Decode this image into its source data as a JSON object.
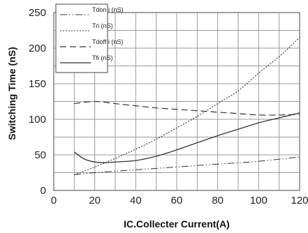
{
  "chart_data": {
    "type": "line",
    "title": "",
    "xlabel": "IC.Collecter Current(A)",
    "ylabel": "Switching Time (nS)",
    "xlim": [
      0,
      120
    ],
    "ylim": [
      0,
      250
    ],
    "xticks": [
      0,
      20,
      40,
      60,
      80,
      100,
      120
    ],
    "yticks": [
      0,
      50,
      100,
      150,
      200,
      250
    ],
    "grid": true,
    "legend_position": "top-left",
    "series": [
      {
        "name": "Tdon i (nS)",
        "dash": "dash-dot-dot",
        "x": [
          10,
          20,
          40,
          60,
          80,
          100,
          120
        ],
        "y": [
          22,
          25,
          29,
          33,
          37,
          41,
          47
        ]
      },
      {
        "name": "Tri (nS)",
        "dash": "dotted",
        "x": [
          10,
          20,
          30,
          40,
          50,
          60,
          70,
          80,
          90,
          100,
          110,
          120
        ],
        "y": [
          22,
          33,
          45,
          58,
          72,
          88,
          104,
          122,
          140,
          165,
          188,
          215
        ]
      },
      {
        "name": "Tdoff i (nS)",
        "dash": "long-dash",
        "x": [
          10,
          15,
          20,
          25,
          30,
          40,
          50,
          60,
          70,
          80,
          90,
          100,
          110,
          120
        ],
        "y": [
          122,
          124,
          125,
          124,
          122,
          119,
          116,
          114,
          112,
          110,
          108,
          106,
          106,
          107
        ]
      },
      {
        "name": "Tfi (nS)",
        "dash": "solid",
        "x": [
          10,
          15,
          20,
          25,
          30,
          40,
          50,
          60,
          70,
          80,
          90,
          100,
          110,
          120
        ],
        "y": [
          54,
          44,
          40,
          39,
          40,
          42,
          48,
          57,
          67,
          77,
          86,
          95,
          102,
          109
        ]
      }
    ]
  }
}
